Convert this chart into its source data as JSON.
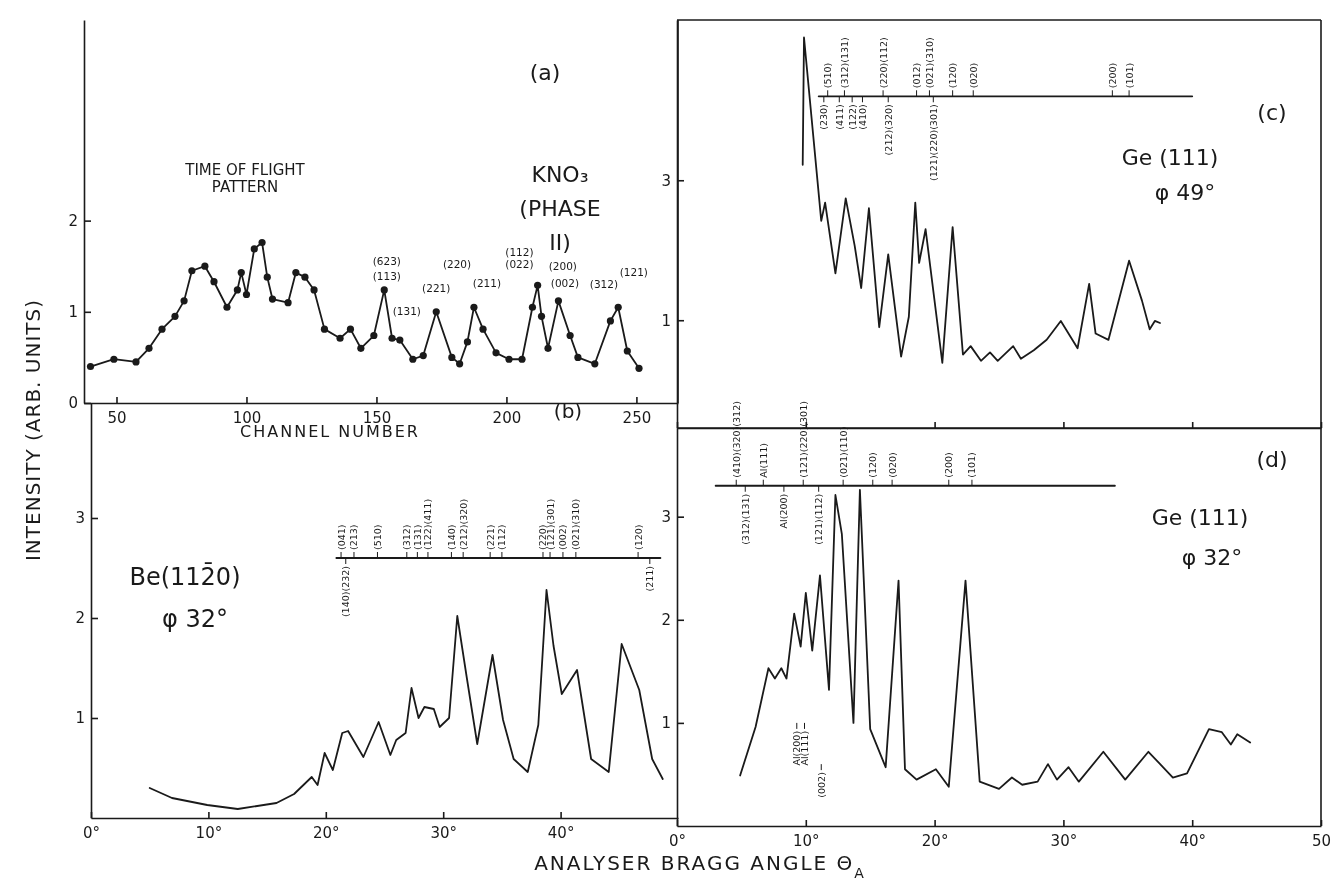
{
  "chart_data": [
    {
      "type": "line",
      "title": "KNO₃ (PHASE II)",
      "xlabel": "CHANNEL NUMBER",
      "ylabel": "INTENSITY (ARB. UNITS)",
      "marker": "circle",
      "x": [
        40,
        49,
        57.5,
        62.5,
        67.5,
        72.5,
        76,
        79,
        84,
        87.5,
        92.5,
        96.5,
        98,
        100,
        103,
        106,
        108,
        110,
        116,
        119,
        122.5,
        126,
        130,
        136,
        140,
        144,
        149,
        153,
        156,
        159,
        164,
        168,
        173,
        179,
        182,
        185,
        187.5,
        191,
        196,
        201,
        206,
        210,
        212,
        213.5,
        216,
        220,
        224.5,
        227.5,
        234,
        240,
        243,
        246.5,
        251
      ],
      "series": [
        {
          "color": "#1a1a1a",
          "values": [
            0.4,
            0.48,
            0.45,
            0.6,
            0.81,
            0.95,
            1.12,
            1.45,
            1.5,
            1.33,
            1.05,
            1.24,
            1.43,
            1.19,
            1.69,
            1.76,
            1.38,
            1.14,
            1.1,
            1.43,
            1.38,
            1.24,
            0.81,
            0.71,
            0.81,
            0.6,
            0.74,
            1.24,
            0.71,
            0.69,
            0.48,
            0.52,
            1.0,
            0.5,
            0.43,
            0.67,
            1.05,
            0.81,
            0.55,
            0.48,
            0.48,
            1.05,
            1.29,
            0.95,
            0.6,
            1.12,
            0.74,
            0.5,
            0.43,
            0.9,
            1.05,
            0.57,
            0.38
          ]
        }
      ],
      "xlim": [
        37.5,
        266
      ],
      "ylim": [
        0,
        4.2
      ],
      "xticks": [
        50,
        100,
        150,
        200,
        250
      ],
      "yticks": [
        0,
        1,
        2
      ],
      "annotations": [
        "(a)",
        "TIME OF FLIGHT PATTERN",
        "(623)",
        "(113)",
        "(131)",
        "(221)",
        "(220)",
        "(211)",
        "(112)",
        "(022)",
        "(200)",
        "(002)",
        "(312)",
        "(121)"
      ]
    },
    {
      "type": "line",
      "xlabel": "ANALYSER BRAGG ANGLE Θ$_{A}$",
      "x": [
        5.0,
        6.9,
        9.9,
        12.5,
        15.8,
        17.3,
        18.8,
        19.3,
        19.9,
        20.6,
        21.4,
        21.9,
        23.2,
        24.5,
        25.5,
        26.0,
        26.8,
        27.3,
        27.9,
        28.4,
        29.2,
        29.7,
        30.5,
        31.2,
        32.0,
        32.9,
        34.2,
        35.1,
        36.0,
        37.2,
        38.1,
        38.8,
        39.4,
        40.1,
        41.4,
        42.6,
        44.1,
        45.2,
        46.7,
        47.8,
        48.7
      ],
      "series": [
        {
          "color": "#1a1a1a",
          "values": [
            0.3,
            0.2,
            0.13,
            0.09,
            0.15,
            0.24,
            0.41,
            0.33,
            0.65,
            0.48,
            0.85,
            0.87,
            0.61,
            0.96,
            0.63,
            0.78,
            0.85,
            1.3,
            1.0,
            1.11,
            1.09,
            0.91,
            1.0,
            2.02,
            1.41,
            0.74,
            1.63,
            0.98,
            0.59,
            0.46,
            0.93,
            2.28,
            1.72,
            1.24,
            1.48,
            0.59,
            0.46,
            1.74,
            1.28,
            0.59,
            0.39
          ]
        },
        {
          "color": "#1a1a1a",
          "x": [
            20.9,
            48.5
          ],
          "values": [
            2.6,
            2.6
          ]
        }
      ],
      "xlim": [
        0,
        50
      ],
      "ylim": [
        0,
        4.15
      ],
      "xticks": [
        {
          "value": 0,
          "label": "0°"
        },
        {
          "value": 10,
          "label": "10°"
        },
        {
          "value": 20,
          "label": "20°"
        },
        {
          "value": 30,
          "label": "30°"
        },
        {
          "value": 40,
          "label": "40°"
        }
      ],
      "yticks": [
        1,
        2,
        3
      ],
      "annotations": [
        "(b)",
        "Be(112̄0)",
        "φ  32°",
        "(041)",
        "(213)",
        "(510)",
        "(312)",
        "(131)",
        "(122)(411)",
        "(140)",
        "(212)(320)",
        "(221)",
        "(112)",
        "(220)",
        "(121)(301)",
        "(002)",
        "(021)(310)",
        "(120)",
        "(140)(232)",
        "(211)"
      ]
    },
    {
      "type": "line",
      "x": [
        9.76,
        9.86,
        11.2,
        11.5,
        12.3,
        13.1,
        13.8,
        14.3,
        14.9,
        15.7,
        16.4,
        17.4,
        18.0,
        18.5,
        18.8,
        19.3,
        20.6,
        21.4,
        22.2,
        22.8,
        23.6,
        24.3,
        24.9,
        26.1,
        26.7,
        27.7,
        28.7,
        29.8,
        31.1,
        32.0,
        32.5,
        33.5,
        35.1,
        36.1,
        36.7,
        37.1,
        37.5
      ],
      "series": [
        {
          "color": "#1a1a1a",
          "values": [
            3.22,
            5.04,
            2.42,
            2.68,
            1.67,
            2.74,
            2.06,
            1.46,
            2.6,
            0.9,
            1.94,
            0.48,
            1.05,
            2.68,
            1.82,
            2.3,
            0.39,
            2.33,
            0.51,
            0.63,
            0.42,
            0.54,
            0.42,
            0.63,
            0.45,
            0.57,
            0.72,
            0.99,
            0.6,
            1.52,
            0.81,
            0.72,
            1.85,
            1.28,
            0.87,
            0.99,
            0.96
          ]
        },
        {
          "color": "#1a1a1a",
          "x": [
            11,
            40
          ],
          "values": [
            4.2,
            4.2
          ]
        }
      ],
      "xlim": [
        0,
        50
      ],
      "ylim": [
        -0.54,
        5.29
      ],
      "xticks": [
        0,
        10,
        20,
        30,
        40,
        50
      ],
      "yticks": [
        1,
        3
      ],
      "tick_labels": "y",
      "annotations": [
        "(c)",
        "Ge (111)",
        "φ   49°",
        "(510)",
        "(312)(131)",
        "(220)(112)",
        "(012)",
        "(021)(310)",
        "(120)",
        "(020)",
        "(200)",
        "(101)",
        "(230)",
        "(411)",
        "(122)",
        "(410)",
        "(212)(320)",
        "(121)(220)(301)"
      ]
    },
    {
      "type": "line",
      "x": [
        4.9,
        6.1,
        7.1,
        7.6,
        8.1,
        8.5,
        9.1,
        9.6,
        10.0,
        10.5,
        11.1,
        11.8,
        12.3,
        12.8,
        13.7,
        14.2,
        15.0,
        16.2,
        17.2,
        17.7,
        18.6,
        20.1,
        21.1,
        22.4,
        23.5,
        25.0,
        26.0,
        26.8,
        28.0,
        28.8,
        29.5,
        30.4,
        31.2,
        33.1,
        34.8,
        36.6,
        38.5,
        39.6,
        41.3,
        42.3,
        43.0,
        43.5,
        44.5
      ],
      "series": [
        {
          "color": "#1a1a1a",
          "values": [
            0.49,
            0.96,
            1.53,
            1.43,
            1.53,
            1.43,
            2.06,
            1.74,
            2.26,
            1.7,
            2.43,
            1.32,
            3.21,
            2.83,
            1.0,
            3.26,
            0.94,
            0.57,
            2.38,
            0.55,
            0.45,
            0.55,
            0.38,
            2.38,
            0.43,
            0.36,
            0.47,
            0.4,
            0.43,
            0.6,
            0.45,
            0.57,
            0.43,
            0.72,
            0.45,
            0.72,
            0.47,
            0.51,
            0.94,
            0.91,
            0.79,
            0.89,
            0.81
          ]
        },
        {
          "color": "#1a1a1a",
          "x": [
            3,
            34
          ],
          "values": [
            3.3,
            3.3
          ]
        }
      ],
      "xlim": [
        0,
        50
      ],
      "ylim": [
        0,
        3.86
      ],
      "xticks": [
        {
          "value": 0,
          "label": "0°"
        },
        {
          "value": 10,
          "label": "10°"
        },
        {
          "value": 20,
          "label": "20°"
        },
        {
          "value": 30,
          "label": "30°"
        },
        {
          "value": 40,
          "label": "40°"
        },
        50
      ],
      "yticks": [
        1,
        2,
        3
      ],
      "annotations": [
        "(d)",
        "Ge (111)",
        "φ  32°",
        "(410)(320)(312)",
        "Al(111)",
        "(121)(220)(301)",
        "(021)(110)",
        "(120)",
        "(020)",
        "(200)",
        "(101)",
        "(312)(131)",
        "Al(200)",
        "(121)(112)",
        "Al(200)",
        "Al(111)",
        "(002)"
      ]
    }
  ]
}
